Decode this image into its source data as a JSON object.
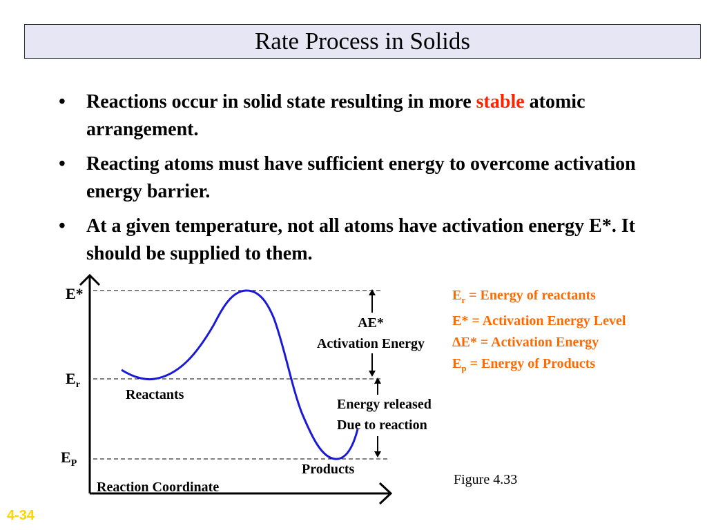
{
  "title": "Rate Process in Solids",
  "bullets": [
    {
      "text_pre": "Reactions occur in solid state resulting in more ",
      "highlight": "stable",
      "text_post": " atomic arrangement."
    },
    {
      "text_pre": "Reacting atoms must have sufficient energy to overcome activation energy barrier.",
      "highlight": "",
      "text_post": ""
    },
    {
      "text_pre": "At a given temperature, not all atoms have activation energy E*. It should be supplied to them.",
      "highlight": "",
      "text_post": ""
    }
  ],
  "bullet_symbol": "•",
  "diagram": {
    "levels": {
      "e_star": "E*",
      "e_r_main": "E",
      "e_r_sub": "r",
      "e_p_main": "E",
      "e_p_sub": "P"
    },
    "labels": {
      "activation_symbol": "AE*",
      "activation_energy": "Activation Energy",
      "reactants": "Reactants",
      "products": "Products",
      "energy_released_1": "Energy released",
      "energy_released_2": "Due to reaction",
      "x_axis": "Reaction Coordinate"
    },
    "curve_color": "#1a1ad6"
  },
  "legend": [
    {
      "main": "E",
      "sub": "r",
      "rest": " = Energy of reactants"
    },
    {
      "main": "E* = Activation Energy Level",
      "sub": "",
      "rest": ""
    },
    {
      "main": "ΔE* = Activation Energy",
      "sub": "",
      "rest": ""
    },
    {
      "main": "E",
      "sub": "p",
      "rest": " = Energy of Products"
    }
  ],
  "legend_color": "#ff6a00",
  "figure_caption": "Figure 4.33",
  "slide_number": "4-34"
}
